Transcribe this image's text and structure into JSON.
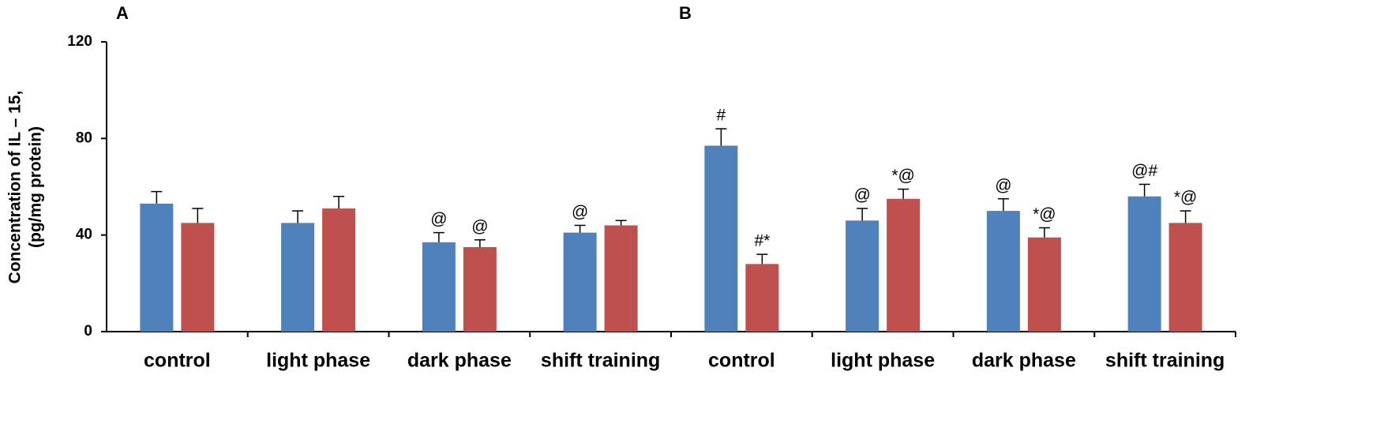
{
  "chart_data": {
    "type": "bar",
    "panels": [
      "A",
      "B"
    ],
    "ylabel": [
      "Concentration of IL – 15,",
      "(pg/mg protein)"
    ],
    "categories": [
      "control",
      "light phase",
      "dark phase",
      "shift training",
      "control",
      "light phase",
      "dark phase",
      "shift training"
    ],
    "series": [
      {
        "color": "#4f81bd",
        "values": [
          53,
          45,
          37,
          41,
          77,
          46,
          50,
          56
        ],
        "errors": [
          5,
          5,
          4,
          3,
          7,
          5,
          5,
          5
        ],
        "labels": [
          null,
          null,
          "@",
          "@",
          "#",
          "@",
          "@",
          "@#"
        ]
      },
      {
        "color": "#c0504d",
        "values": [
          45,
          51,
          35,
          44,
          28,
          55,
          39,
          45
        ],
        "errors": [
          6,
          5,
          3,
          2,
          4,
          4,
          4,
          5
        ],
        "labels": [
          null,
          null,
          "@",
          null,
          "#*",
          "*@",
          "*@",
          "*@"
        ]
      }
    ],
    "ylim": [
      0,
      120
    ],
    "yticks": [
      0,
      40,
      80,
      120
    ],
    "grid": false
  }
}
